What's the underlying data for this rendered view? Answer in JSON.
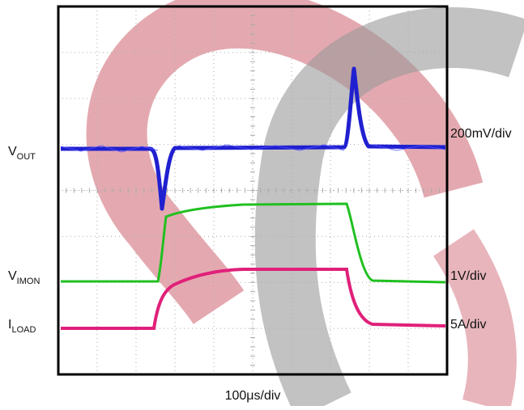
{
  "channels": [
    {
      "label": "V",
      "subscript": "OUT",
      "scale": "200mV/div"
    },
    {
      "label": "V",
      "subscript": "IMON",
      "scale": "1V/div"
    },
    {
      "label": "I",
      "subscript": "LOAD",
      "scale": "5A/div"
    }
  ],
  "timebase": "100μs/div"
}
